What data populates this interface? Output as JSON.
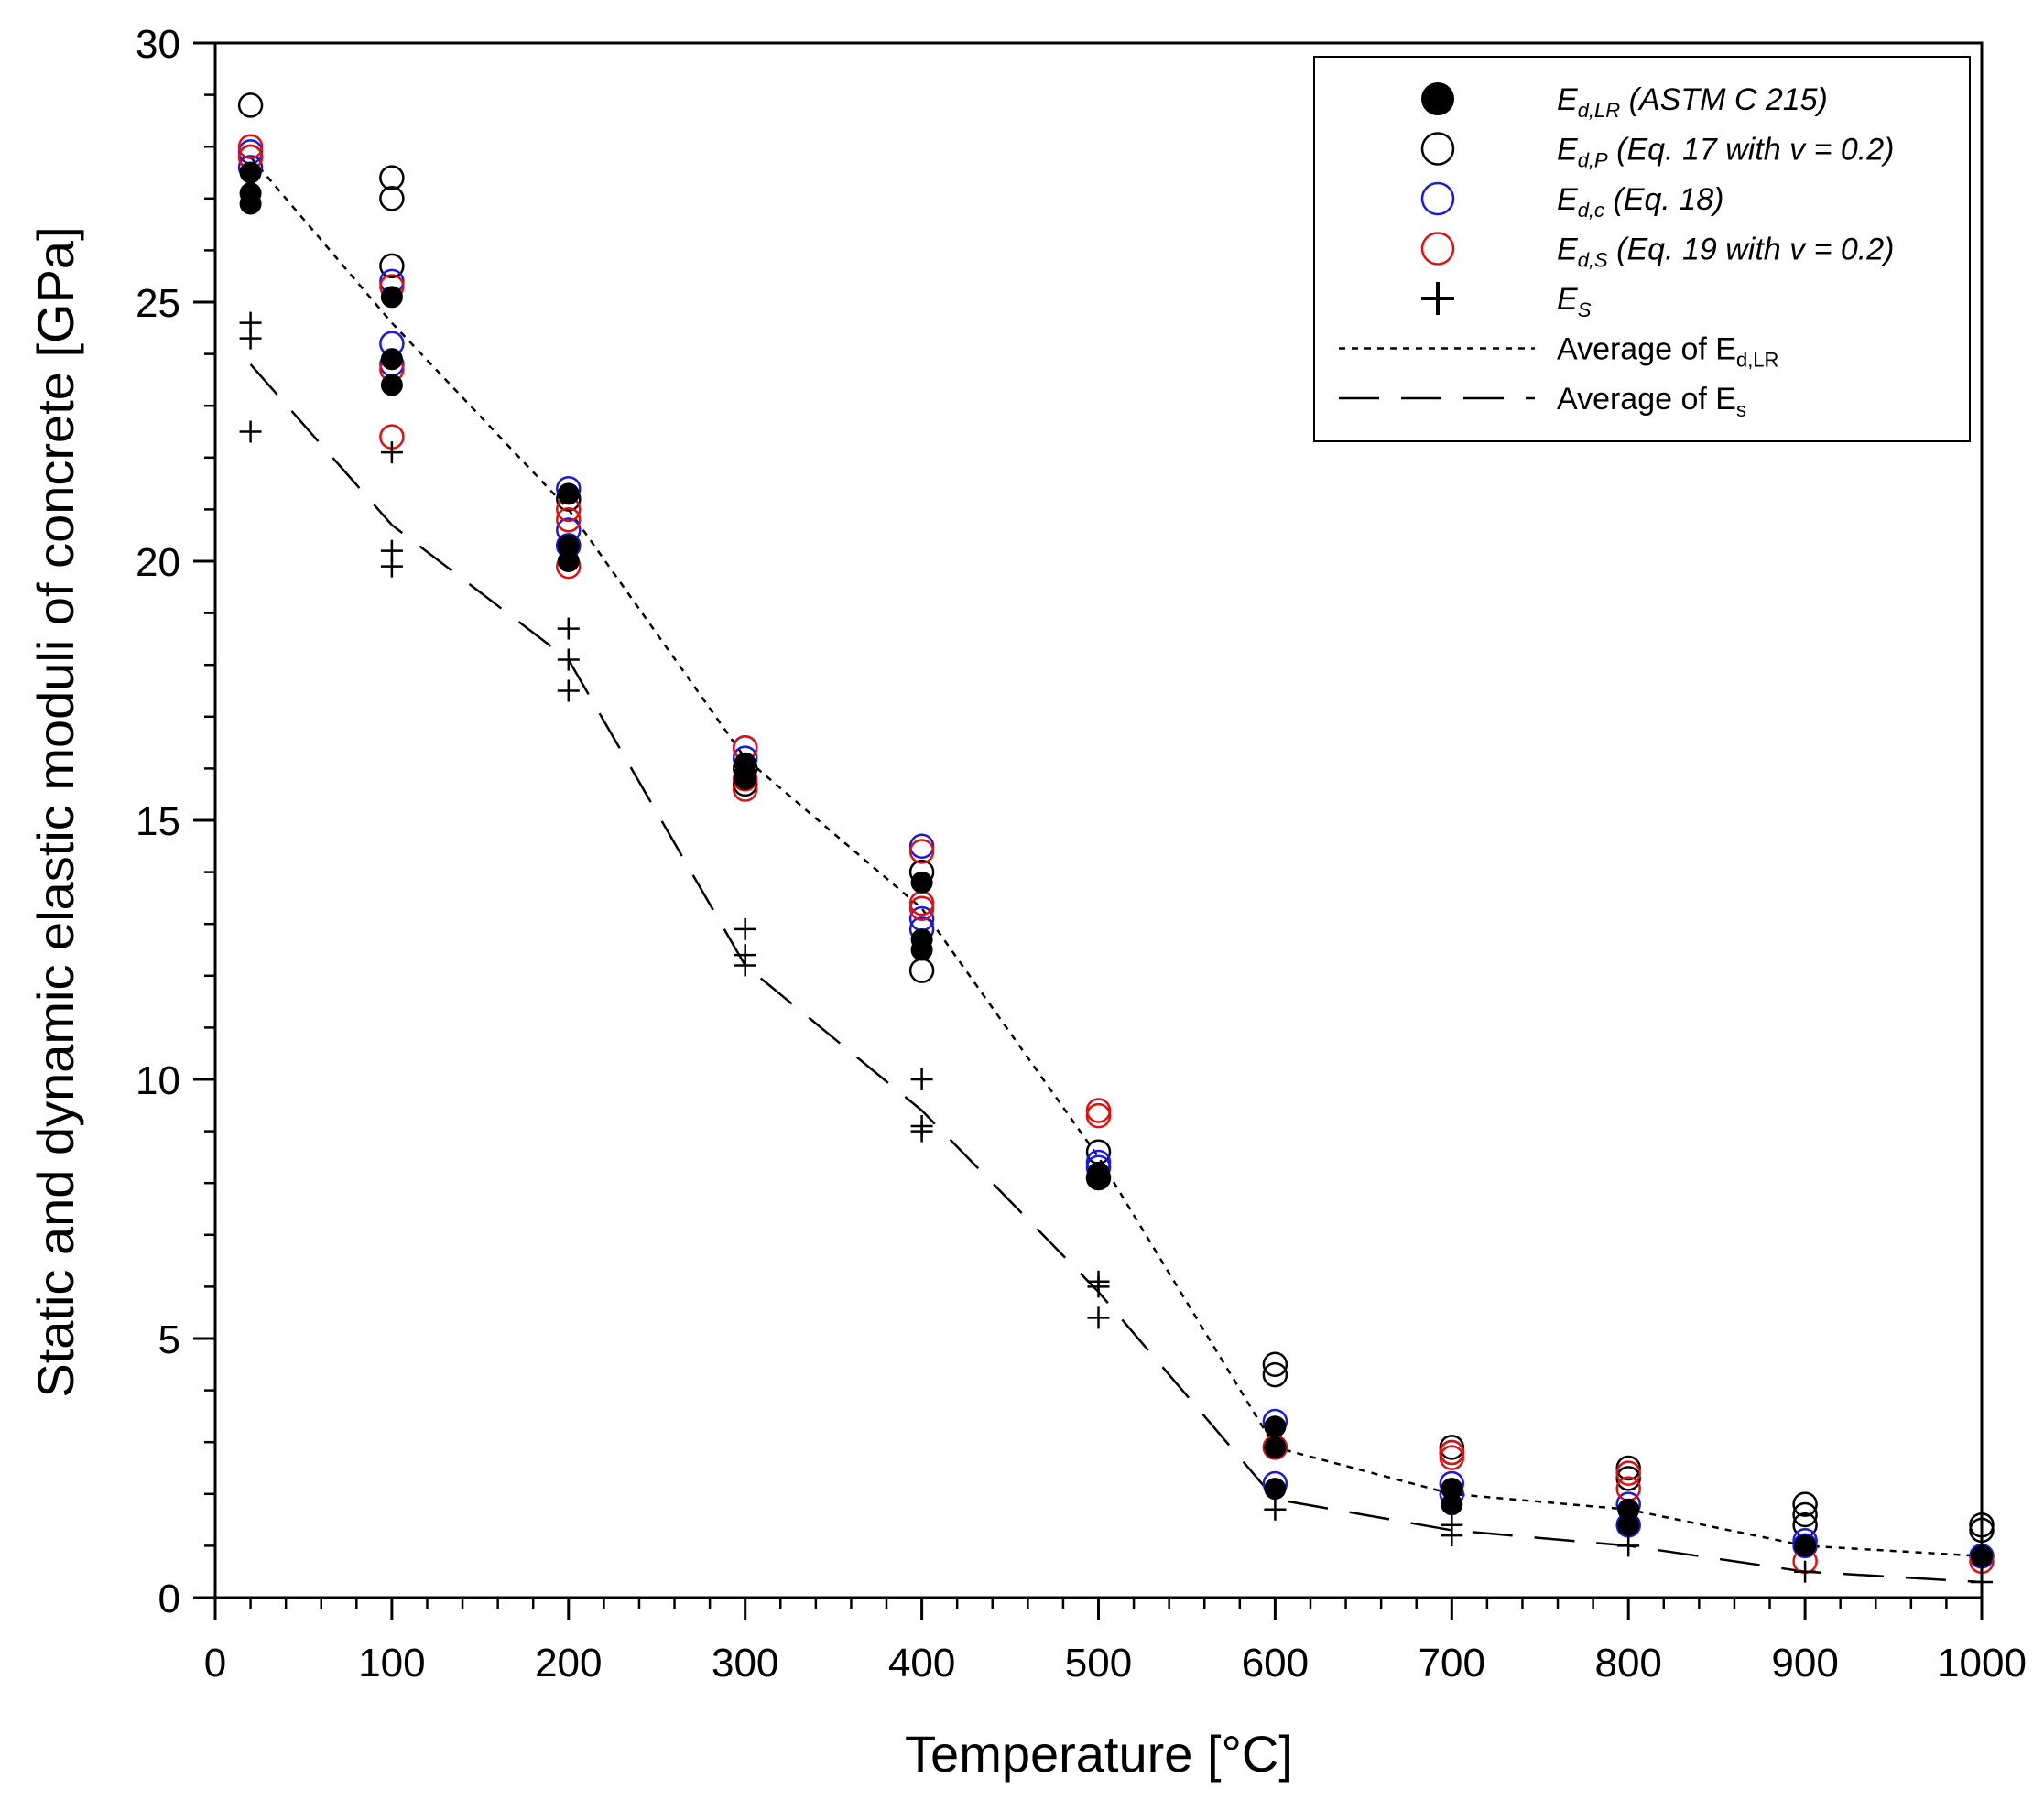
{
  "chart_data": {
    "type": "scatter",
    "title": "",
    "xlabel": "Temperature [°C]",
    "ylabel": "Static and dynamic elastic moduli of concrete [GPa]",
    "xlim": [
      0,
      1000
    ],
    "ylim": [
      0,
      30
    ],
    "xticks": [
      "0",
      "100",
      "200",
      "300",
      "400",
      "500",
      "600",
      "700",
      "800",
      "900",
      "1000"
    ],
    "yticks": [
      "0",
      "5",
      "10",
      "15",
      "20",
      "25",
      "30"
    ],
    "legend_position": "top-right",
    "grid": false,
    "series": [
      {
        "name": "E_d,LR (ASTM C 215)",
        "legend_main": "E",
        "legend_sub": "d,LR",
        "legend_rest": " (ASTM C 215)",
        "marker": "filled-circle",
        "color": "#000000",
        "points": [
          [
            20,
            27.5
          ],
          [
            20,
            27.1
          ],
          [
            20,
            26.9
          ],
          [
            100,
            25.1
          ],
          [
            100,
            23.9
          ],
          [
            100,
            23.4
          ],
          [
            200,
            21.3
          ],
          [
            200,
            20.3
          ],
          [
            200,
            20.0
          ],
          [
            300,
            16.1
          ],
          [
            300,
            15.9
          ],
          [
            300,
            15.8
          ],
          [
            400,
            13.8
          ],
          [
            400,
            12.7
          ],
          [
            400,
            12.5
          ],
          [
            500,
            8.2
          ],
          [
            500,
            8.1
          ],
          [
            600,
            3.3
          ],
          [
            600,
            2.9
          ],
          [
            600,
            2.1
          ],
          [
            700,
            2.1
          ],
          [
            700,
            1.8
          ],
          [
            800,
            1.7
          ],
          [
            800,
            1.4
          ],
          [
            900,
            1.0
          ],
          [
            1000,
            0.8
          ]
        ]
      },
      {
        "name": "E_d,P (Eq. 17 with v = 0.2)",
        "legend_main": "E",
        "legend_sub": "d,P",
        "legend_rest": " (Eq. 17 with v = 0.2)",
        "marker": "open-circle",
        "color": "#000000",
        "points": [
          [
            20,
            28.8
          ],
          [
            20,
            27.8
          ],
          [
            100,
            27.4
          ],
          [
            100,
            27.0
          ],
          [
            100,
            25.7
          ],
          [
            200,
            21.2
          ],
          [
            200,
            20.3
          ],
          [
            300,
            16.0
          ],
          [
            300,
            15.7
          ],
          [
            400,
            14.0
          ],
          [
            400,
            12.1
          ],
          [
            500,
            8.6
          ],
          [
            500,
            8.1
          ],
          [
            600,
            4.5
          ],
          [
            600,
            4.3
          ],
          [
            700,
            2.9
          ],
          [
            700,
            2.8
          ],
          [
            800,
            2.5
          ],
          [
            800,
            2.3
          ],
          [
            900,
            1.8
          ],
          [
            900,
            1.6
          ],
          [
            900,
            1.4
          ],
          [
            1000,
            1.4
          ],
          [
            1000,
            1.3
          ]
        ]
      },
      {
        "name": "E_d,c (Eq. 18)",
        "legend_main": "E",
        "legend_sub": "d,c",
        "legend_rest": " (Eq. 18)",
        "marker": "open-circle",
        "color": "#1a1adb",
        "points": [
          [
            20,
            27.9
          ],
          [
            20,
            27.6
          ],
          [
            100,
            25.4
          ],
          [
            100,
            24.2
          ],
          [
            100,
            23.8
          ],
          [
            200,
            21.4
          ],
          [
            200,
            20.6
          ],
          [
            200,
            20.3
          ],
          [
            300,
            16.4
          ],
          [
            300,
            16.2
          ],
          [
            400,
            14.5
          ],
          [
            400,
            13.1
          ],
          [
            400,
            12.9
          ],
          [
            500,
            8.4
          ],
          [
            500,
            8.3
          ],
          [
            600,
            3.4
          ],
          [
            600,
            2.9
          ],
          [
            600,
            2.2
          ],
          [
            700,
            2.2
          ],
          [
            700,
            2.0
          ],
          [
            800,
            1.8
          ],
          [
            800,
            1.4
          ],
          [
            900,
            1.1
          ],
          [
            900,
            1.0
          ],
          [
            1000,
            0.8
          ]
        ]
      },
      {
        "name": "E_d,S (Eq. 19 with v = 0.2)",
        "legend_main": "E",
        "legend_sub": "d,S",
        "legend_rest": " (Eq. 19 with v = 0.2)",
        "marker": "open-circle",
        "color": "#e01010",
        "points": [
          [
            20,
            28.0
          ],
          [
            20,
            27.8
          ],
          [
            100,
            25.3
          ],
          [
            100,
            23.7
          ],
          [
            100,
            22.4
          ],
          [
            200,
            21.0
          ],
          [
            200,
            20.8
          ],
          [
            200,
            19.9
          ],
          [
            300,
            16.4
          ],
          [
            300,
            15.8
          ],
          [
            300,
            15.6
          ],
          [
            400,
            14.4
          ],
          [
            400,
            13.4
          ],
          [
            400,
            13.3
          ],
          [
            500,
            9.4
          ],
          [
            500,
            9.3
          ],
          [
            600,
            2.9
          ],
          [
            700,
            2.8
          ],
          [
            700,
            2.7
          ],
          [
            800,
            2.4
          ],
          [
            800,
            2.1
          ],
          [
            900,
            0.7
          ],
          [
            1000,
            0.7
          ]
        ]
      },
      {
        "name": "E_S",
        "legend_main": "E",
        "legend_sub": "S",
        "legend_rest": "",
        "marker": "plus",
        "color": "#000000",
        "points": [
          [
            20,
            24.6
          ],
          [
            20,
            24.3
          ],
          [
            20,
            22.5
          ],
          [
            100,
            22.1
          ],
          [
            100,
            20.2
          ],
          [
            100,
            19.9
          ],
          [
            200,
            18.7
          ],
          [
            200,
            18.1
          ],
          [
            200,
            17.5
          ],
          [
            300,
            12.9
          ],
          [
            300,
            12.4
          ],
          [
            300,
            12.2
          ],
          [
            400,
            10.0
          ],
          [
            400,
            9.1
          ],
          [
            400,
            9.0
          ],
          [
            500,
            6.1
          ],
          [
            500,
            6.0
          ],
          [
            500,
            5.4
          ],
          [
            600,
            1.7
          ],
          [
            700,
            1.4
          ],
          [
            700,
            1.2
          ],
          [
            800,
            1.0
          ],
          [
            900,
            0.5
          ],
          [
            1000,
            0.3
          ]
        ]
      }
    ],
    "lines": [
      {
        "name": "Average of E_d,LR",
        "legend_main": "Average of E",
        "legend_sub": "d,LR",
        "style": "dotted",
        "x": [
          20,
          100,
          200,
          300,
          400,
          500,
          600,
          700,
          800,
          900,
          1000
        ],
        "y": [
          27.8,
          24.6,
          21.0,
          16.2,
          13.3,
          8.5,
          2.9,
          2.0,
          1.7,
          1.0,
          0.8
        ]
      },
      {
        "name": "Average of E_s",
        "legend_main": "Average of E",
        "legend_sub": "s",
        "style": "dashed",
        "x": [
          20,
          100,
          200,
          300,
          400,
          500,
          600,
          700,
          800,
          900,
          1000
        ],
        "y": [
          23.8,
          20.7,
          18.1,
          12.2,
          9.4,
          5.9,
          1.9,
          1.3,
          1.0,
          0.5,
          0.3
        ]
      }
    ]
  }
}
